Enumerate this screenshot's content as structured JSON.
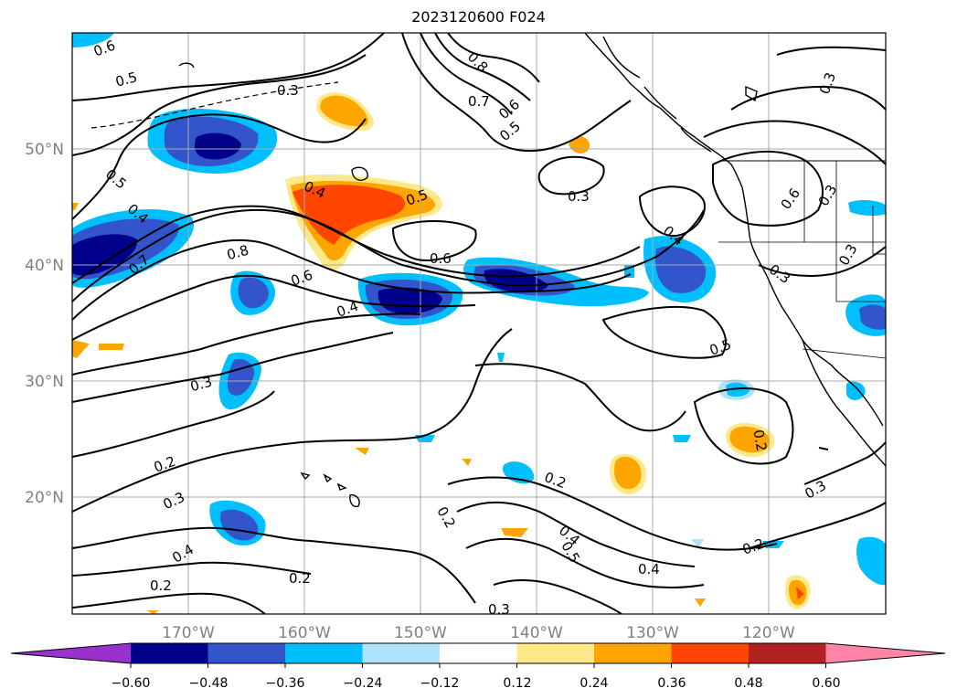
{
  "title": "2023120600 F024",
  "map": {
    "lon_range": [
      -180,
      -110
    ],
    "lat_range": [
      10,
      60
    ],
    "lon_ticks": [
      "170°W",
      "160°W",
      "150°W",
      "140°W",
      "130°W",
      "120°W"
    ],
    "lat_ticks": [
      "50°N",
      "40°N",
      "30°N",
      "20°N"
    ],
    "grid": true
  },
  "colorbar": {
    "extend": "both",
    "ticks": [
      "−0.60",
      "−0.48",
      "−0.36",
      "−0.24",
      "−0.12",
      "0.12",
      "0.24",
      "0.36",
      "0.48",
      "0.60"
    ],
    "colors": [
      "#9932cc",
      "#00008b",
      "#3355cc",
      "#00bfff",
      "#aee3fa",
      "#ffffff",
      "#fde98a",
      "#ffa500",
      "#ff4500",
      "#b22222",
      "#ff85a8"
    ]
  },
  "contour_labels": [
    "0.6",
    "0.5",
    "0.3",
    "0.8",
    "0.7",
    "0.6",
    "0.5",
    "0.3",
    "0.3",
    "0.5",
    "0.4",
    "0.4",
    "0.5",
    "0.3",
    "0.6",
    "0.7",
    "0.8",
    "0.6",
    "0.6",
    "0.4",
    "0.4",
    "0.3",
    "0.5",
    "0.3",
    "0.2",
    "0.3",
    "0.2",
    "0.4",
    "0.2",
    "0.2",
    "0.2",
    "0.4",
    "0.5",
    "0.4",
    "0.2",
    "0.3",
    "0.2",
    "0.3",
    "0.3"
  ]
}
